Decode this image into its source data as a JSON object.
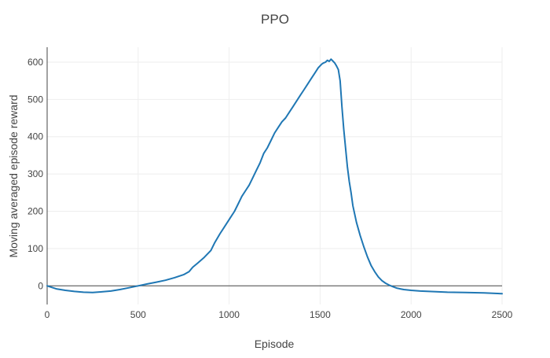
{
  "chart_data": {
    "type": "line",
    "title": "PPO",
    "xlabel": "Episode",
    "ylabel": "Moving averaged episode reward",
    "xlim": [
      0,
      2500
    ],
    "ylim": [
      -50,
      640
    ],
    "x_ticks": [
      0,
      500,
      1000,
      1500,
      2000,
      2500
    ],
    "y_ticks": [
      0,
      100,
      200,
      300,
      400,
      500,
      600
    ],
    "grid": true,
    "zeroline": true,
    "series": [
      {
        "color": "#1f77b4",
        "x": [
          0,
          50,
          100,
          150,
          200,
          250,
          300,
          350,
          400,
          450,
          500,
          550,
          600,
          650,
          700,
          750,
          780,
          800,
          830,
          860,
          900,
          920,
          950,
          970,
          990,
          1010,
          1030,
          1050,
          1070,
          1090,
          1110,
          1130,
          1150,
          1170,
          1190,
          1210,
          1230,
          1250,
          1270,
          1290,
          1310,
          1330,
          1350,
          1370,
          1390,
          1410,
          1430,
          1450,
          1470,
          1490,
          1500,
          1510,
          1520,
          1530,
          1540,
          1550,
          1560,
          1570,
          1580,
          1590,
          1600,
          1610,
          1620,
          1630,
          1640,
          1650,
          1660,
          1670,
          1680,
          1700,
          1720,
          1740,
          1760,
          1780,
          1800,
          1820,
          1840,
          1860,
          1880,
          1900,
          1920,
          1940,
          1960,
          1980,
          2000,
          2050,
          2100,
          2200,
          2300,
          2400,
          2500
        ],
        "y": [
          0,
          -8,
          -12,
          -15,
          -17,
          -18,
          -16,
          -14,
          -10,
          -5,
          0,
          5,
          10,
          15,
          22,
          30,
          38,
          50,
          62,
          75,
          95,
          115,
          140,
          155,
          170,
          185,
          200,
          220,
          240,
          255,
          270,
          290,
          310,
          330,
          355,
          370,
          390,
          410,
          425,
          440,
          450,
          465,
          480,
          495,
          510,
          525,
          540,
          555,
          570,
          585,
          590,
          595,
          598,
          600,
          605,
          602,
          608,
          603,
          598,
          590,
          580,
          550,
          480,
          420,
          370,
          320,
          280,
          250,
          215,
          170,
          135,
          105,
          78,
          55,
          38,
          24,
          14,
          7,
          2,
          -2,
          -6,
          -8,
          -10,
          -11,
          -12,
          -14,
          -15,
          -17,
          -18,
          -19,
          -21
        ]
      }
    ]
  }
}
